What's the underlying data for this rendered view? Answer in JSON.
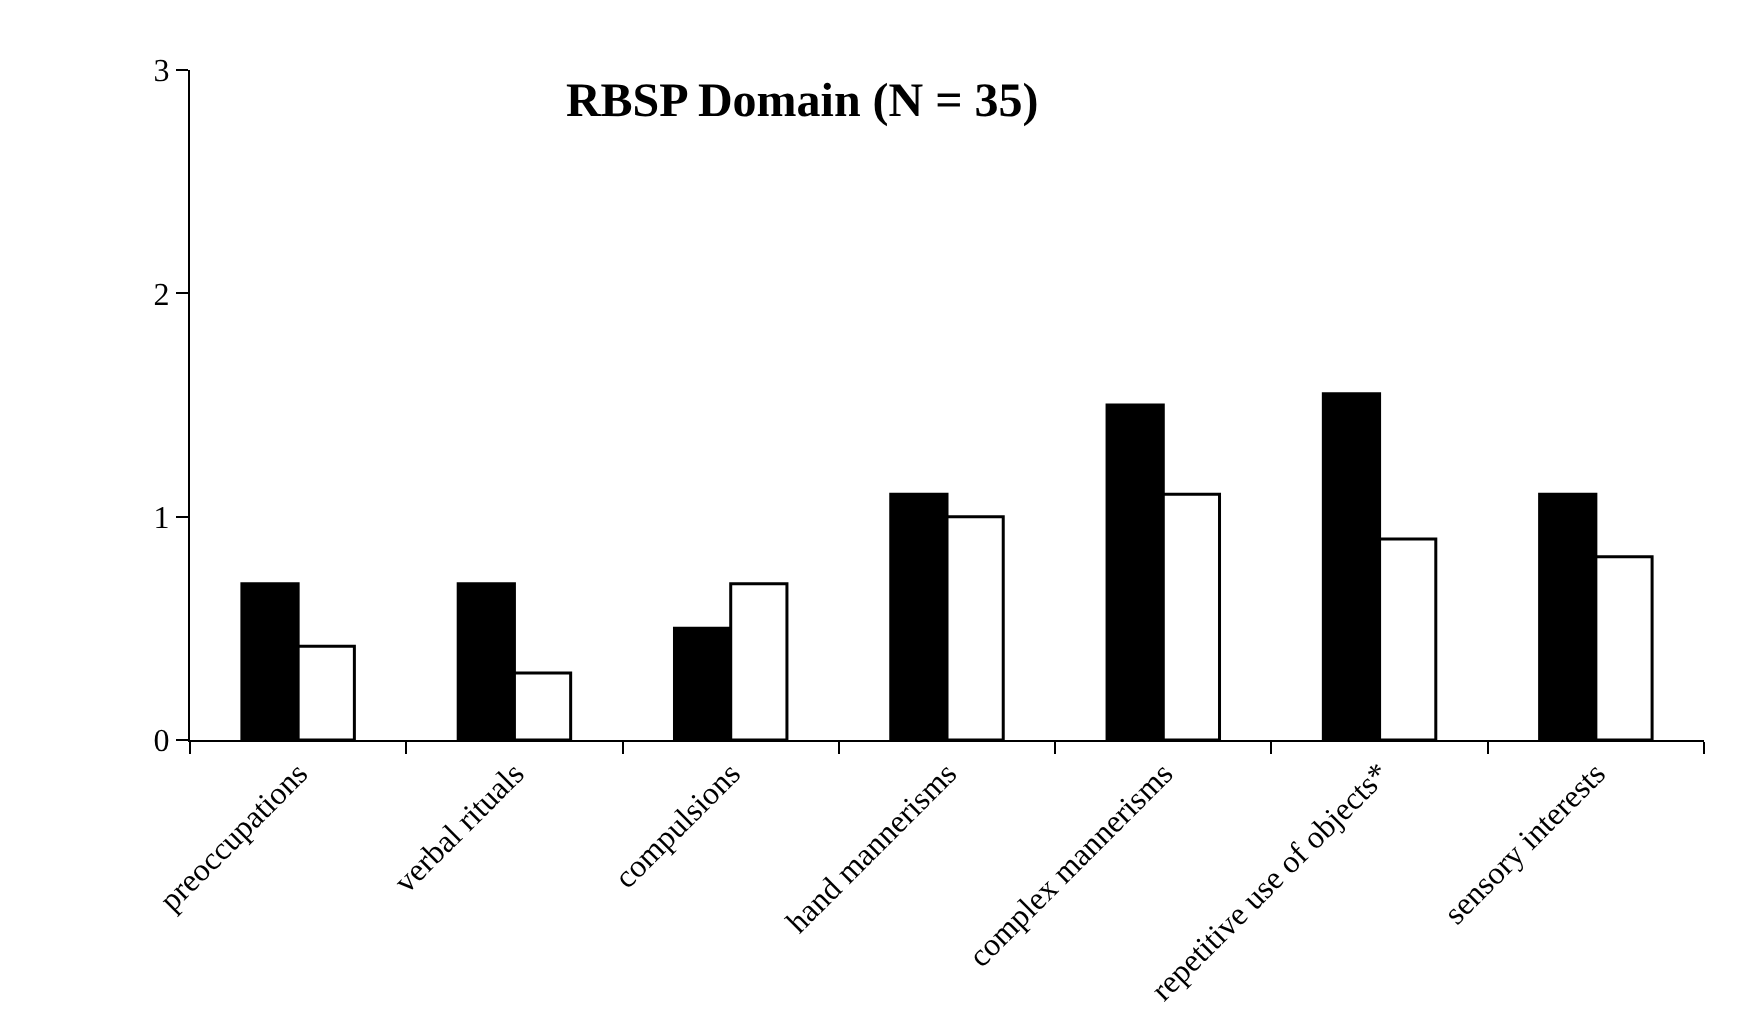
{
  "chart_data": {
    "type": "bar",
    "title": "RBSP Domain (N = 35)",
    "categories": [
      "preoccupations",
      "verbal rituals",
      "compulsions",
      "hand mannerisms",
      "complex mannerisms",
      "repetitive use of objects*",
      "sensory interests"
    ],
    "series": [
      {
        "color": "#000000",
        "values": [
          0.7,
          0.7,
          0.5,
          1.1,
          1.5,
          1.55,
          1.1
        ]
      },
      {
        "color": "#ffffff",
        "values": [
          0.42,
          0.3,
          0.7,
          1.0,
          1.1,
          0.9,
          0.82
        ]
      }
    ],
    "ylim": [
      0,
      3
    ],
    "yticks": [
      0,
      1,
      2,
      3
    ],
    "grid": false
  }
}
